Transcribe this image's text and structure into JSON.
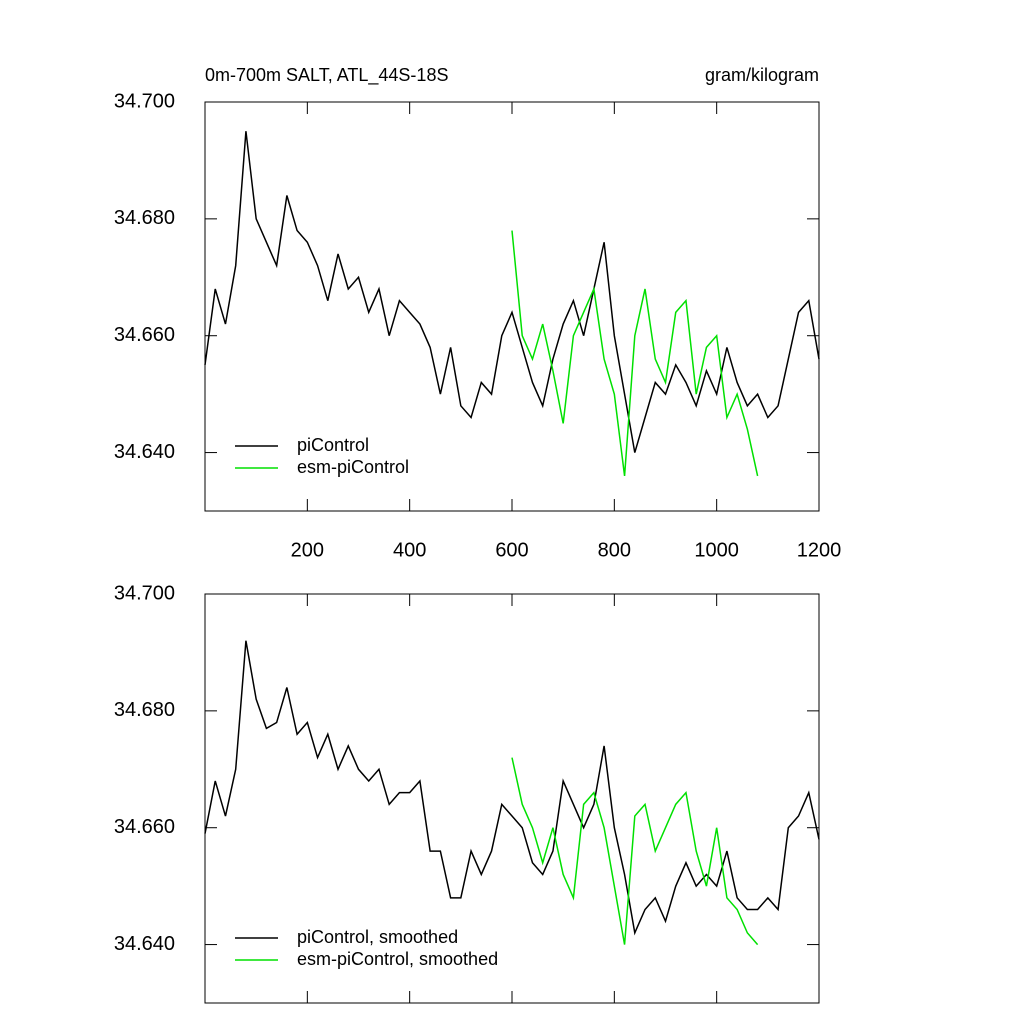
{
  "chart_data": [
    {
      "type": "line",
      "title": "0m-700m SALT, ATL_44S-18S",
      "units": "gram/kilogram",
      "xlim": [
        0,
        1200
      ],
      "xticks": [
        200,
        400,
        600,
        800,
        1000,
        1200
      ],
      "show_xtick_labels": true,
      "ylim": [
        34.63,
        34.7
      ],
      "yticks": [
        {
          "value": 34.64,
          "label": "34.640"
        },
        {
          "value": 34.66,
          "label": "34.660"
        },
        {
          "value": 34.68,
          "label": "34.680"
        },
        {
          "value": 34.7,
          "label": "34.700"
        }
      ],
      "legend": "lower left",
      "series": [
        {
          "name": "piControl",
          "color": "#000000",
          "x": [
            0,
            20,
            40,
            60,
            80,
            100,
            120,
            140,
            160,
            180,
            200,
            220,
            240,
            260,
            280,
            300,
            320,
            340,
            360,
            380,
            400,
            420,
            440,
            460,
            480,
            500,
            520,
            540,
            560,
            580,
            600,
            620,
            640,
            660,
            680,
            700,
            720,
            740,
            760,
            780,
            800,
            820,
            840,
            860,
            880,
            900,
            920,
            940,
            960,
            980,
            1000,
            1020,
            1040,
            1060,
            1080,
            1100,
            1120,
            1140,
            1160,
            1180,
            1200
          ],
          "values": [
            34.655,
            34.668,
            34.662,
            34.672,
            34.695,
            34.68,
            34.676,
            34.672,
            34.684,
            34.678,
            34.676,
            34.672,
            34.666,
            34.674,
            34.668,
            34.67,
            34.664,
            34.668,
            34.66,
            34.666,
            34.664,
            34.662,
            34.658,
            34.65,
            34.658,
            34.648,
            34.646,
            34.652,
            34.65,
            34.66,
            34.664,
            34.658,
            34.652,
            34.648,
            34.656,
            34.662,
            34.666,
            34.66,
            34.668,
            34.676,
            34.66,
            34.65,
            34.64,
            34.646,
            34.652,
            34.65,
            34.655,
            34.652,
            34.648,
            34.654,
            34.65,
            34.658,
            34.652,
            34.648,
            34.65,
            34.646,
            34.648,
            34.656,
            34.664,
            34.666,
            34.656
          ]
        },
        {
          "name": "esm-piControl",
          "color": "#00e000",
          "x": [
            600,
            620,
            640,
            660,
            680,
            700,
            720,
            740,
            760,
            780,
            800,
            820,
            840,
            860,
            880,
            900,
            920,
            940,
            960,
            980,
            1000,
            1020,
            1040,
            1060,
            1080
          ],
          "values": [
            34.678,
            34.66,
            34.656,
            34.662,
            34.654,
            34.645,
            34.66,
            34.664,
            34.668,
            34.656,
            34.65,
            34.636,
            34.66,
            34.668,
            34.656,
            34.652,
            34.664,
            34.666,
            34.65,
            34.658,
            34.66,
            34.646,
            34.65,
            34.644,
            34.636
          ]
        }
      ]
    },
    {
      "type": "line",
      "xlim": [
        0,
        1200
      ],
      "xticks": [
        200,
        400,
        600,
        800,
        1000,
        1200
      ],
      "show_xtick_labels": false,
      "ylim": [
        34.63,
        34.7
      ],
      "yticks": [
        {
          "value": 34.64,
          "label": "34.640"
        },
        {
          "value": 34.66,
          "label": "34.660"
        },
        {
          "value": 34.68,
          "label": "34.680"
        },
        {
          "value": 34.7,
          "label": "34.700"
        }
      ],
      "legend": "lower left",
      "series": [
        {
          "name": "piControl, smoothed",
          "color": "#000000",
          "x": [
            0,
            20,
            40,
            60,
            80,
            100,
            120,
            140,
            160,
            180,
            200,
            220,
            240,
            260,
            280,
            300,
            320,
            340,
            360,
            380,
            400,
            420,
            440,
            460,
            480,
            500,
            520,
            540,
            560,
            580,
            600,
            620,
            640,
            660,
            680,
            700,
            720,
            740,
            760,
            780,
            800,
            820,
            840,
            860,
            880,
            900,
            920,
            940,
            960,
            980,
            1000,
            1020,
            1040,
            1060,
            1080,
            1100,
            1120,
            1140,
            1160,
            1180,
            1200
          ],
          "values": [
            34.659,
            34.668,
            34.662,
            34.67,
            34.692,
            34.682,
            34.677,
            34.678,
            34.684,
            34.676,
            34.678,
            34.672,
            34.676,
            34.67,
            34.674,
            34.67,
            34.668,
            34.67,
            34.664,
            34.666,
            34.666,
            34.668,
            34.656,
            34.656,
            34.648,
            34.648,
            34.656,
            34.652,
            34.656,
            34.664,
            34.662,
            34.66,
            34.654,
            34.652,
            34.656,
            34.668,
            34.664,
            34.66,
            34.664,
            34.674,
            34.66,
            34.652,
            34.642,
            34.646,
            34.648,
            34.644,
            34.65,
            34.654,
            34.65,
            34.652,
            34.65,
            34.656,
            34.648,
            34.646,
            34.646,
            34.648,
            34.646,
            34.66,
            34.662,
            34.666,
            34.658
          ]
        },
        {
          "name": "esm-piControl, smoothed",
          "color": "#00e000",
          "x": [
            600,
            620,
            640,
            660,
            680,
            700,
            720,
            740,
            760,
            780,
            800,
            820,
            840,
            860,
            880,
            900,
            920,
            940,
            960,
            980,
            1000,
            1020,
            1040,
            1060,
            1080
          ],
          "values": [
            34.672,
            34.664,
            34.66,
            34.654,
            34.66,
            34.652,
            34.648,
            34.664,
            34.666,
            34.66,
            34.65,
            34.64,
            34.662,
            34.664,
            34.656,
            34.66,
            34.664,
            34.666,
            34.656,
            34.65,
            34.66,
            34.648,
            34.646,
            34.642,
            34.64
          ]
        }
      ]
    }
  ]
}
